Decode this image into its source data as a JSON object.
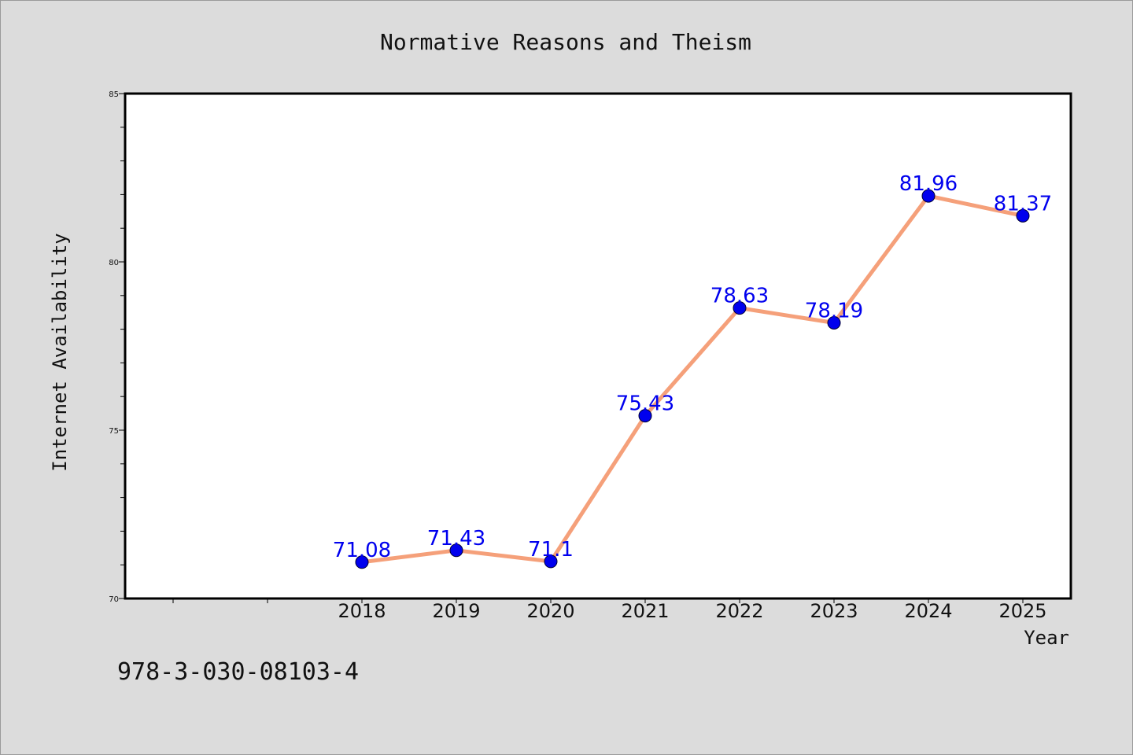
{
  "chart_data": {
    "type": "line",
    "title": "Normative Reasons and Theism",
    "xlabel": "Year",
    "ylabel": "Internet Availability",
    "categories": [
      "2018",
      "2019",
      "2020",
      "2021",
      "2022",
      "2023",
      "2024",
      "2025"
    ],
    "series": [
      {
        "values": [
          71.08,
          71.43,
          71.1,
          75.43,
          78.63,
          78.19,
          81.96,
          81.37
        ],
        "labels": [
          "71.08",
          "71.43",
          "71.1",
          "75.43",
          "78.63",
          "78.19",
          "81.96",
          "81.37"
        ],
        "line_color": "#f5a07a",
        "marker_color": "#0000ee"
      }
    ],
    "ylim": [
      70,
      85
    ],
    "yticks": [
      "70",
      "75",
      "80",
      "85"
    ],
    "grid": false,
    "legend": "none"
  },
  "footer_text": "978-3-030-08103-4"
}
